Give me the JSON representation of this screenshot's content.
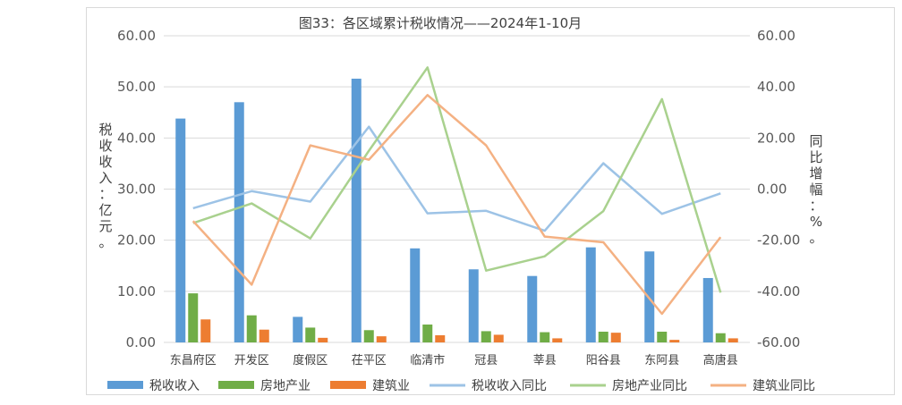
{
  "chart_data": {
    "type": "bar",
    "title": "图33：各区域累计税收情况——2024年1-10月",
    "categories": [
      "东昌府区",
      "开发区",
      "度假区",
      "茌平区",
      "临清市",
      "冠县",
      "莘县",
      "阳谷县",
      "东阿县",
      "高唐县"
    ],
    "y_left": {
      "label": "税收收入：亿元。",
      "ylim": [
        0,
        60
      ],
      "ticks": [
        "0.00",
        "10.00",
        "20.00",
        "30.00",
        "40.00",
        "50.00",
        "60.00"
      ]
    },
    "y_right": {
      "label": "同比增幅：%。",
      "ylim": [
        -60,
        60
      ],
      "ticks": [
        "-60.00",
        "-40.00",
        "-20.00",
        "0.00",
        "20.00",
        "40.00",
        "60.00"
      ]
    },
    "grid": true,
    "legend_position": "bottom",
    "bar_series": [
      {
        "name": "税收收入",
        "color": "#5b9bd5",
        "values": [
          43.8,
          47.0,
          5.0,
          51.6,
          18.4,
          14.3,
          13.0,
          18.6,
          17.8,
          12.6
        ]
      },
      {
        "name": "房地产业",
        "color": "#70ad47",
        "values": [
          9.6,
          5.3,
          2.9,
          2.4,
          3.5,
          2.2,
          2.0,
          2.1,
          2.1,
          1.8
        ]
      },
      {
        "name": "建筑业",
        "color": "#ed7d31",
        "values": [
          4.5,
          2.5,
          0.9,
          1.2,
          1.4,
          1.5,
          0.8,
          1.9,
          0.5,
          0.8
        ]
      }
    ],
    "line_series": [
      {
        "name": "税收收入同比",
        "color": "#9dc3e6",
        "values": [
          -7.5,
          -0.8,
          -4.9,
          24.4,
          -9.5,
          -8.5,
          -16.3,
          10.1,
          -9.7,
          -1.7
        ]
      },
      {
        "name": "房地产业同比",
        "color": "#a9d18e",
        "values": [
          -13.3,
          -5.6,
          -19.3,
          15.0,
          47.6,
          -31.9,
          -26.3,
          -8.6,
          35.2,
          -40.5
        ]
      },
      {
        "name": "建筑业同比",
        "color": "#f4b183",
        "values": [
          -12.5,
          -37.4,
          17.1,
          11.5,
          36.8,
          17.1,
          -18.6,
          -20.8,
          -48.8,
          -18.8
        ]
      }
    ]
  }
}
